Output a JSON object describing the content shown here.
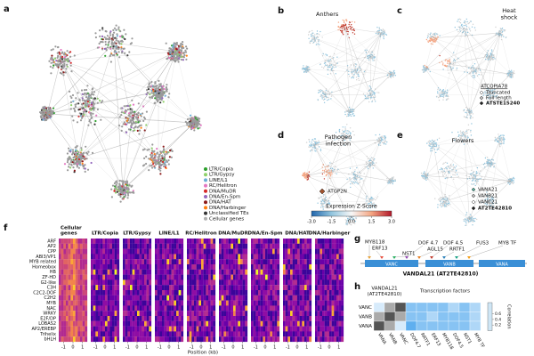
{
  "panel_labels": [
    "a",
    "b",
    "c",
    "d",
    "e",
    "f",
    "g",
    "h"
  ],
  "a": {
    "legend": [
      {
        "name": "LTR/Copia",
        "color": "#2ca02c"
      },
      {
        "name": "LTR/Gypsy",
        "color": "#8fd16a"
      },
      {
        "name": "LINE/L1",
        "color": "#6baed6"
      },
      {
        "name": "RC/Helitron",
        "color": "#e377c2"
      },
      {
        "name": "DNA/MuDR",
        "color": "#d62728"
      },
      {
        "name": "DNA/En-Spm",
        "color": "#9467bd"
      },
      {
        "name": "DNA/HAT",
        "color": "#8c1a1a"
      },
      {
        "name": "DNA/Harbinger",
        "color": "#ff7f0e"
      },
      {
        "name": "Unclassified TEs",
        "color": "#333333"
      },
      {
        "name": "Cellular genes",
        "color": "#b0b0b0"
      }
    ]
  },
  "b": {
    "title": [
      "Anthers"
    ]
  },
  "c": {
    "title": [
      "Heat",
      "shock"
    ],
    "legend_title": "ATCOPIA78",
    "legend": [
      "Truncated",
      "Full length",
      "ATSTE15240"
    ]
  },
  "d": {
    "title": [
      "Pathogen",
      "infection"
    ],
    "marker_label": "ATGP2N"
  },
  "e": {
    "title": [
      "Flowers"
    ],
    "legend": [
      "VANA21",
      "VANB21",
      "VANC21",
      "AT2TE42810"
    ]
  },
  "colorbar": {
    "title": "Expression Z-Score",
    "lim": [
      -3,
      3
    ],
    "ticks": [
      {
        "value": -3,
        "label": "-3.0"
      },
      {
        "value": -1.5,
        "label": "-1.5"
      },
      {
        "value": 0,
        "label": "0.0"
      },
      {
        "value": 1.5,
        "label": "1.5"
      },
      {
        "value": 3,
        "label": "3.0"
      }
    ]
  },
  "f": {
    "columns": [
      [
        "Cellular",
        "genes"
      ],
      [
        "LTR/Copia"
      ],
      [
        "LTR/Gypsy"
      ],
      [
        "LINE/L1"
      ],
      [
        "RC/Helitron"
      ],
      [
        "DNA/MuDR"
      ],
      [
        "DNA/En-Spm"
      ],
      [
        "DNA/HAT"
      ],
      [
        "DNA/Harbinger"
      ]
    ],
    "rows": [
      "ARF",
      "AP2",
      "CPP",
      "ABI3/VP1",
      "MYB related",
      "Homeobox",
      "HB",
      "ZF-HD",
      "G2-like",
      "C3H",
      "C2C2-DOF",
      "C2H2",
      "MYB",
      "NAC",
      "WRKY",
      "E2F/DP",
      "LOBAS2",
      "AP2/EREBP",
      "Trihelix",
      "bHLH"
    ],
    "xlim": [
      -1.5,
      1.5
    ],
    "xticks": [
      -1,
      0,
      1
    ],
    "xlabel": "Position (kb)"
  },
  "g": {
    "sites": [
      "MYB118",
      "ERF13",
      "NST1",
      "DOF 4.7",
      "AGL15",
      "DOF 4.5",
      "RRTF1",
      "FUS3",
      "MYB TF"
    ],
    "domains": [
      "VANC",
      "VANB",
      "VANA"
    ],
    "title": "VANDAL21 (AT2TE42810)"
  },
  "h": {
    "title": [
      "VANDAL21",
      "(AT2TE42810)"
    ],
    "group_label": "Transcription factors",
    "rows": [
      "VANC",
      "VANB",
      "VANA"
    ],
    "columns": [
      "VANA",
      "VANB",
      "VANC",
      "DOF4.7",
      "RRTF1",
      "ERF13",
      "MYB118",
      "DOF4.5",
      "NST1",
      "MYB TF"
    ],
    "values": [
      [
        0.1,
        0.7,
        1.0,
        0.3,
        0.3,
        0.3,
        0.3,
        0.2,
        0.3,
        0.2
      ],
      [
        0.7,
        1.0,
        0.7,
        0.3,
        0.3,
        0.2,
        0.3,
        0.3,
        0.3,
        0.2
      ],
      [
        1.0,
        0.7,
        0.1,
        0.4,
        0.3,
        0.3,
        0.3,
        0.3,
        0.3,
        0.2
      ]
    ],
    "clim": [
      0,
      1
    ],
    "colorbar_title": "Correlation",
    "colorbar_ticks": [
      0.2,
      0.4,
      0.6
    ]
  }
}
